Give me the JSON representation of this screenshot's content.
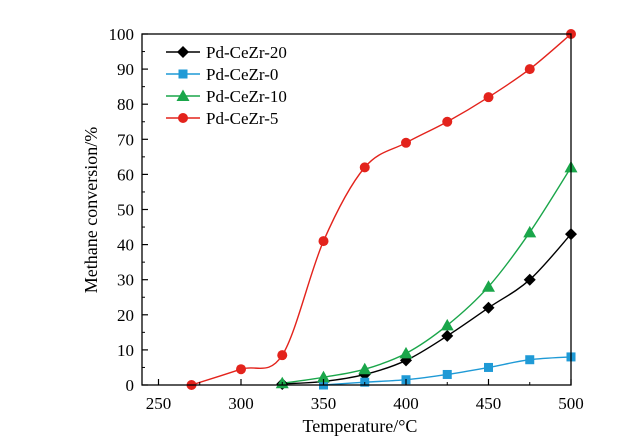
{
  "chart_data": {
    "type": "line",
    "title": "",
    "xlabel": "Temperature/°C",
    "ylabel": "Methane conversion/%",
    "xlim": [
      240,
      500
    ],
    "ylim": [
      0,
      100
    ],
    "xticks": [
      250,
      300,
      350,
      400,
      450,
      500
    ],
    "yticks": [
      0,
      10,
      20,
      30,
      40,
      50,
      60,
      70,
      80,
      90,
      100
    ],
    "grid": false,
    "legend_position": "top-left",
    "series": [
      {
        "name": "Pd-CeZr-20",
        "color": "#000000",
        "marker": "diamond",
        "x": [
          325,
          350,
          375,
          400,
          425,
          450,
          475,
          500
        ],
        "y": [
          0.3,
          1.0,
          3.0,
          7.0,
          14.0,
          22.0,
          30.0,
          43.0
        ]
      },
      {
        "name": "Pd-CeZr-0",
        "color": "#1f9ad6",
        "marker": "square",
        "x": [
          350,
          375,
          400,
          425,
          450,
          475,
          500
        ],
        "y": [
          0.0,
          0.8,
          1.5,
          3.0,
          5.0,
          7.2,
          8.0
        ]
      },
      {
        "name": "Pd-CeZr-10",
        "color": "#1aa64a",
        "marker": "triangle",
        "x": [
          325,
          350,
          375,
          400,
          425,
          450,
          475,
          500
        ],
        "y": [
          0.5,
          2.2,
          4.5,
          9.0,
          17.0,
          28.0,
          43.5,
          62.0
        ]
      },
      {
        "name": "Pd-CeZr-5",
        "color": "#e3231c",
        "marker": "circle",
        "x": [
          270,
          300,
          325,
          350,
          375,
          400,
          425,
          450,
          475,
          500
        ],
        "y": [
          0.0,
          4.5,
          8.5,
          41.0,
          62.0,
          69.0,
          75.0,
          82.0,
          90.0,
          100.0
        ]
      }
    ]
  }
}
